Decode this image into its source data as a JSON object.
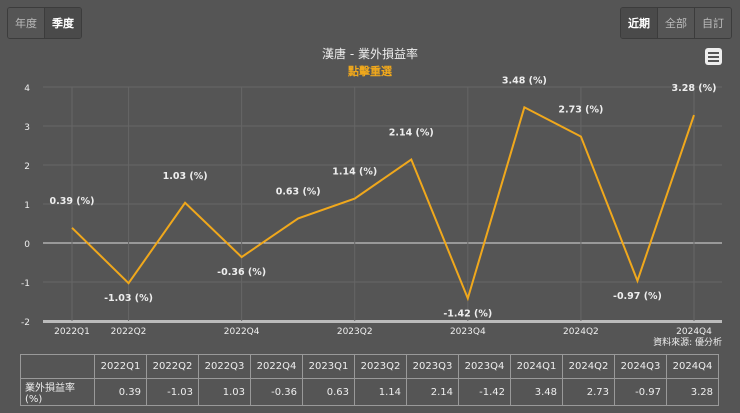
{
  "controls": {
    "period": [
      "年度",
      "季度"
    ],
    "period_active": 1,
    "range": [
      "近期",
      "全部",
      "自訂"
    ],
    "range_active": 0
  },
  "menu_icon": "hamburger-icon",
  "source": "資料來源: 優分析",
  "colors": {
    "line": "#f0a81c",
    "background": "#555555",
    "subtitle": "#f0a81c"
  },
  "chart_data": {
    "type": "line",
    "title": "漢唐 - 業外損益率",
    "subtitle": "點擊重選",
    "categories": [
      "2022Q1",
      "2022Q2",
      "2022Q3",
      "2022Q4",
      "2023Q1",
      "2023Q2",
      "2023Q3",
      "2023Q4",
      "2024Q1",
      "2024Q2",
      "2024Q3",
      "2024Q4"
    ],
    "x_tick_labels": [
      "2022Q1",
      "2022Q2",
      "2022Q4",
      "2023Q2",
      "2023Q4",
      "2024Q2",
      "2024Q4"
    ],
    "series": [
      {
        "name": "業外損益率(%)",
        "values": [
          0.39,
          -1.03,
          1.03,
          -0.36,
          0.63,
          1.14,
          2.14,
          -1.42,
          3.48,
          2.73,
          -0.97,
          3.28
        ]
      }
    ],
    "data_label_suffix": " (%)",
    "ylim": [
      -2,
      4
    ],
    "yticks": [
      -2,
      -1,
      0,
      1,
      2,
      3,
      4
    ],
    "grid": true
  },
  "table": {
    "row_label": "業外損益率(%)",
    "values": [
      "0.39",
      "-1.03",
      "1.03",
      "-0.36",
      "0.63",
      "1.14",
      "2.14",
      "-1.42",
      "3.48",
      "2.73",
      "-0.97",
      "3.28"
    ]
  }
}
